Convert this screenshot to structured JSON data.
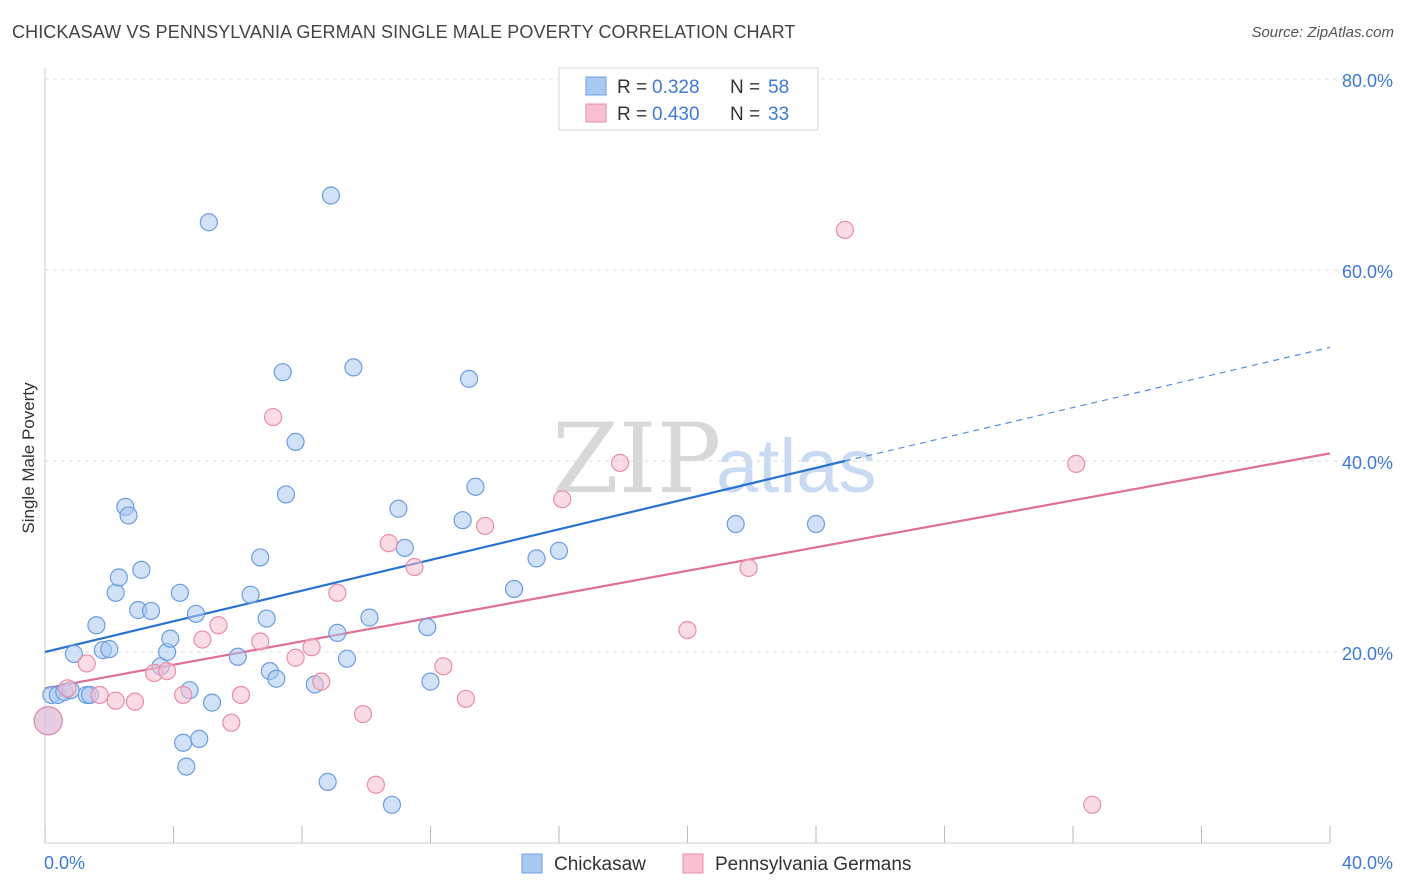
{
  "header": {
    "title": "CHICKASAW VS PENNSYLVANIA GERMAN SINGLE MALE POVERTY CORRELATION CHART",
    "source": "Source: ZipAtlas.com"
  },
  "watermark": {
    "zip": "ZIP",
    "atlas": "atlas"
  },
  "legend": {
    "rows": [
      {
        "r_label": "R =",
        "r_value": "0.328",
        "n_label": "N =",
        "n_value": "58"
      },
      {
        "r_label": "R =",
        "r_value": "0.430",
        "n_label": "N =",
        "n_value": "33"
      }
    ]
  },
  "bottom_legend": [
    "Chickasaw",
    "Pennsylvania Germans"
  ],
  "colors": {
    "chickasaw_fill": "#a9c8f2",
    "chickasaw_stroke": "#6d9de0",
    "chickasaw_line": "#2a72d0",
    "pg_fill": "#f7bfd0",
    "pg_stroke": "#e98daa",
    "pg_line": "#e06f98",
    "grid": "#dcdcdc",
    "tick_text": "#3d7ad6"
  },
  "chart_data": {
    "type": "scatter",
    "title": "CHICKASAW VS PENNSYLVANIA GERMAN SINGLE MALE POVERTY CORRELATION CHART",
    "xlabel": "",
    "ylabel": "Single Male Poverty",
    "xlim": [
      0,
      40
    ],
    "ylim": [
      0,
      80
    ],
    "x_tick_labels": [
      "0.0%",
      "40.0%"
    ],
    "y_ticks": [
      20,
      40,
      60,
      80
    ],
    "y_tick_labels": [
      "20.0%",
      "40.0%",
      "60.0%",
      "80.0%"
    ],
    "grid": true,
    "legend_position": "top-center",
    "series": [
      {
        "name": "Chickasaw",
        "r": 0.328,
        "n": 58,
        "points": [
          [
            0.2,
            15.5
          ],
          [
            0.4,
            15.5
          ],
          [
            0.6,
            15.8
          ],
          [
            0.8,
            16.0
          ],
          [
            0.9,
            19.8
          ],
          [
            1.3,
            15.5
          ],
          [
            1.4,
            15.5
          ],
          [
            1.6,
            22.8
          ],
          [
            1.8,
            20.2
          ],
          [
            2.0,
            20.3
          ],
          [
            2.2,
            26.2
          ],
          [
            2.3,
            27.8
          ],
          [
            2.5,
            35.2
          ],
          [
            2.6,
            34.3
          ],
          [
            2.9,
            24.4
          ],
          [
            3.0,
            28.6
          ],
          [
            3.3,
            24.3
          ],
          [
            3.6,
            18.5
          ],
          [
            3.8,
            20.0
          ],
          [
            3.9,
            21.4
          ],
          [
            4.2,
            26.2
          ],
          [
            4.3,
            10.5
          ],
          [
            4.4,
            8.0
          ],
          [
            4.5,
            16.0
          ],
          [
            4.7,
            24.0
          ],
          [
            4.8,
            10.9
          ],
          [
            5.1,
            65.0
          ],
          [
            5.2,
            14.7
          ],
          [
            6.0,
            19.5
          ],
          [
            6.4,
            26.0
          ],
          [
            6.7,
            29.9
          ],
          [
            6.9,
            23.5
          ],
          [
            7.0,
            18.0
          ],
          [
            7.2,
            17.2
          ],
          [
            7.4,
            49.3
          ],
          [
            7.5,
            36.5
          ],
          [
            7.8,
            42.0
          ],
          [
            8.4,
            16.6
          ],
          [
            8.8,
            6.4
          ],
          [
            8.9,
            67.8
          ],
          [
            9.1,
            22.0
          ],
          [
            9.4,
            19.3
          ],
          [
            9.6,
            49.8
          ],
          [
            10.1,
            23.6
          ],
          [
            10.8,
            4.0
          ],
          [
            11.0,
            35.0
          ],
          [
            11.2,
            30.9
          ],
          [
            11.9,
            22.6
          ],
          [
            12.0,
            16.9
          ],
          [
            13.0,
            33.8
          ],
          [
            13.2,
            48.6
          ],
          [
            13.4,
            37.3
          ],
          [
            14.6,
            26.6
          ],
          [
            15.3,
            29.8
          ],
          [
            16.0,
            30.6
          ],
          [
            21.5,
            33.4
          ],
          [
            24.0,
            33.4
          ],
          [
            0.1,
            12.8
          ]
        ]
      },
      {
        "name": "Pennsylvania Germans",
        "r": 0.43,
        "n": 33,
        "points": [
          [
            0.1,
            12.8
          ],
          [
            0.7,
            16.2
          ],
          [
            1.3,
            18.8
          ],
          [
            1.7,
            15.5
          ],
          [
            2.2,
            14.9
          ],
          [
            2.8,
            14.8
          ],
          [
            3.4,
            17.8
          ],
          [
            3.8,
            18.0
          ],
          [
            4.3,
            15.5
          ],
          [
            4.9,
            21.3
          ],
          [
            5.4,
            22.8
          ],
          [
            5.8,
            12.6
          ],
          [
            6.1,
            15.5
          ],
          [
            6.7,
            21.1
          ],
          [
            7.1,
            44.6
          ],
          [
            7.8,
            19.4
          ],
          [
            8.3,
            20.5
          ],
          [
            8.6,
            16.9
          ],
          [
            9.1,
            26.2
          ],
          [
            9.9,
            13.5
          ],
          [
            10.3,
            6.1
          ],
          [
            10.7,
            31.4
          ],
          [
            11.5,
            28.9
          ],
          [
            12.4,
            18.5
          ],
          [
            13.1,
            15.1
          ],
          [
            13.7,
            33.2
          ],
          [
            16.1,
            36.0
          ],
          [
            17.9,
            39.8
          ],
          [
            20.0,
            22.3
          ],
          [
            21.9,
            28.8
          ],
          [
            24.9,
            64.2
          ],
          [
            32.1,
            39.7
          ],
          [
            32.6,
            4.0
          ]
        ]
      }
    ],
    "trendlines": [
      {
        "series": "Chickasaw",
        "solid": [
          [
            0,
            20.0
          ],
          [
            24.9,
            40.0
          ]
        ],
        "dashed": [
          [
            24.9,
            40.0
          ],
          [
            40,
            51.9
          ]
        ]
      },
      {
        "series": "Pennsylvania Germans",
        "solid": [
          [
            0,
            16.2
          ],
          [
            40,
            40.8
          ]
        ]
      }
    ]
  }
}
